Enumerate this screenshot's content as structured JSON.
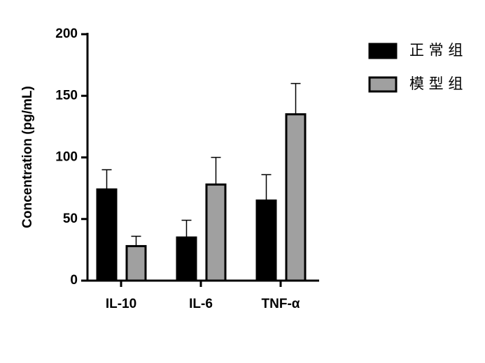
{
  "chart_data": {
    "type": "bar",
    "y_label": "Concentration (pg/mL)",
    "categories": [
      "IL-10",
      "IL-6",
      "TNF-α"
    ],
    "series": [
      {
        "name": "正 常 组",
        "color": "#000000",
        "values": [
          74,
          35,
          65
        ],
        "errors": [
          16,
          14,
          21
        ]
      },
      {
        "name": "模 型 组",
        "color": "#a0a0a0",
        "values": [
          28,
          78,
          135
        ],
        "errors": [
          8,
          22,
          25
        ]
      }
    ],
    "ylim": [
      0,
      200
    ],
    "yticks": [
      0,
      50,
      100,
      150,
      200
    ],
    "grid": false,
    "legend": "right"
  }
}
